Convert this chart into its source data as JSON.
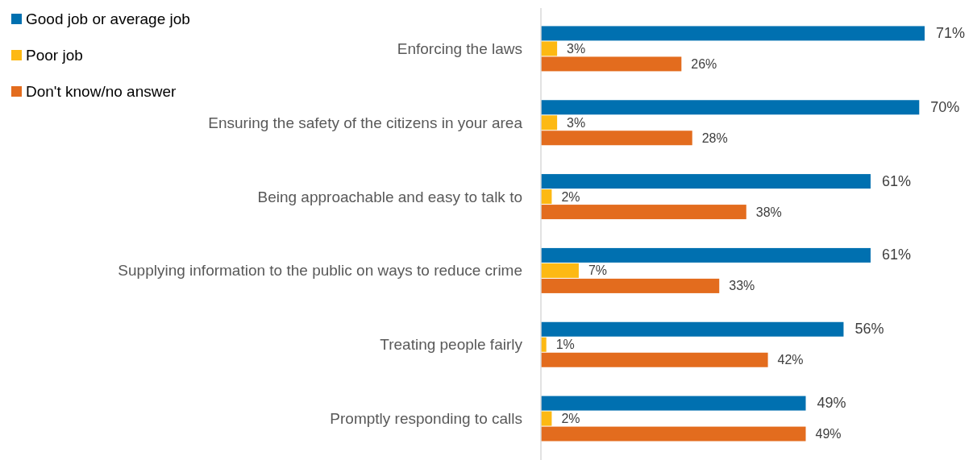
{
  "chart_data": {
    "type": "bar",
    "orientation": "horizontal",
    "categories": [
      "Enforcing the laws",
      "Ensuring the safety of the citizens in your area",
      "Being approachable and easy to talk to",
      "Supplying information to the public on ways to reduce crime",
      "Treating people fairly",
      "Promptly responding to calls"
    ],
    "series": [
      {
        "name": "Good job or average job",
        "color": "#0070b0",
        "values": [
          71,
          70,
          61,
          61,
          56,
          49
        ],
        "value_labels": [
          "71%",
          "70%",
          "61%",
          "61%",
          "56%",
          "49%"
        ]
      },
      {
        "name": "Poor job",
        "color": "#fdb913",
        "values": [
          3,
          3,
          2,
          7,
          1,
          2
        ],
        "value_labels": [
          "3%",
          "3%",
          "2%",
          "7%",
          "1%",
          "2%"
        ]
      },
      {
        "name": "Don't know/no answer",
        "color": "#e36c1e",
        "values": [
          26,
          28,
          38,
          33,
          42,
          49
        ],
        "value_labels": [
          "26%",
          "28%",
          "38%",
          "33%",
          "42%",
          "49%"
        ]
      }
    ],
    "legend": "top left"
  }
}
